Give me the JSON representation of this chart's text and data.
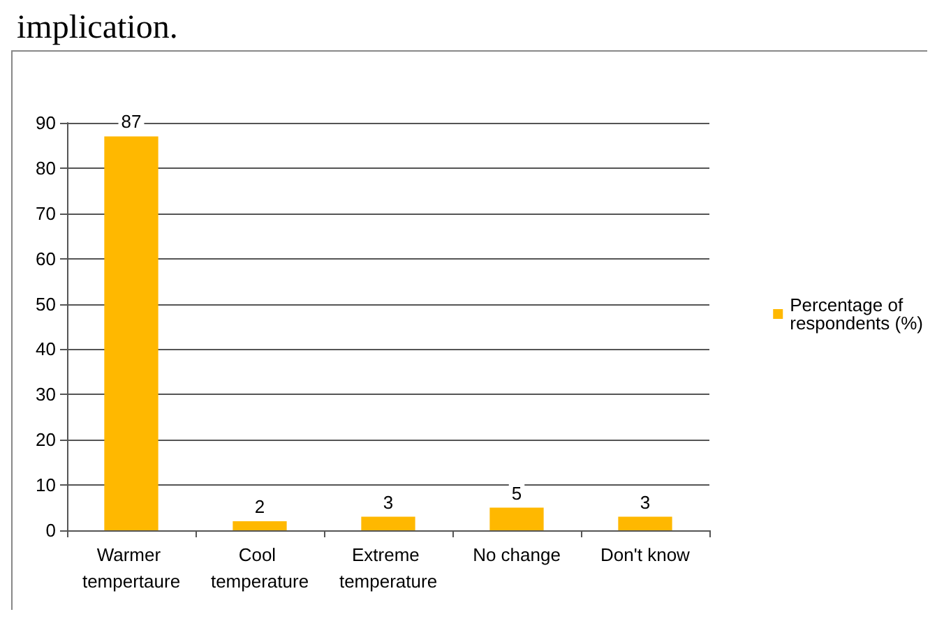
{
  "chart_data": {
    "type": "bar",
    "annotations": [
      "implication."
    ],
    "categories": [
      "Warmer tempertaure",
      "Cool temperature",
      "Extreme temperature",
      "No change",
      "Don't know"
    ],
    "series": [
      {
        "name": "Percentage of respondents (%)",
        "color": "#ffb800",
        "values": [
          87,
          2,
          3,
          5,
          3
        ]
      }
    ],
    "ylim": [
      0,
      90
    ],
    "yticks": [
      0,
      10,
      20,
      30,
      40,
      50,
      60,
      70,
      80,
      90
    ],
    "grid": "y",
    "legend": "right",
    "data_labels": true
  }
}
